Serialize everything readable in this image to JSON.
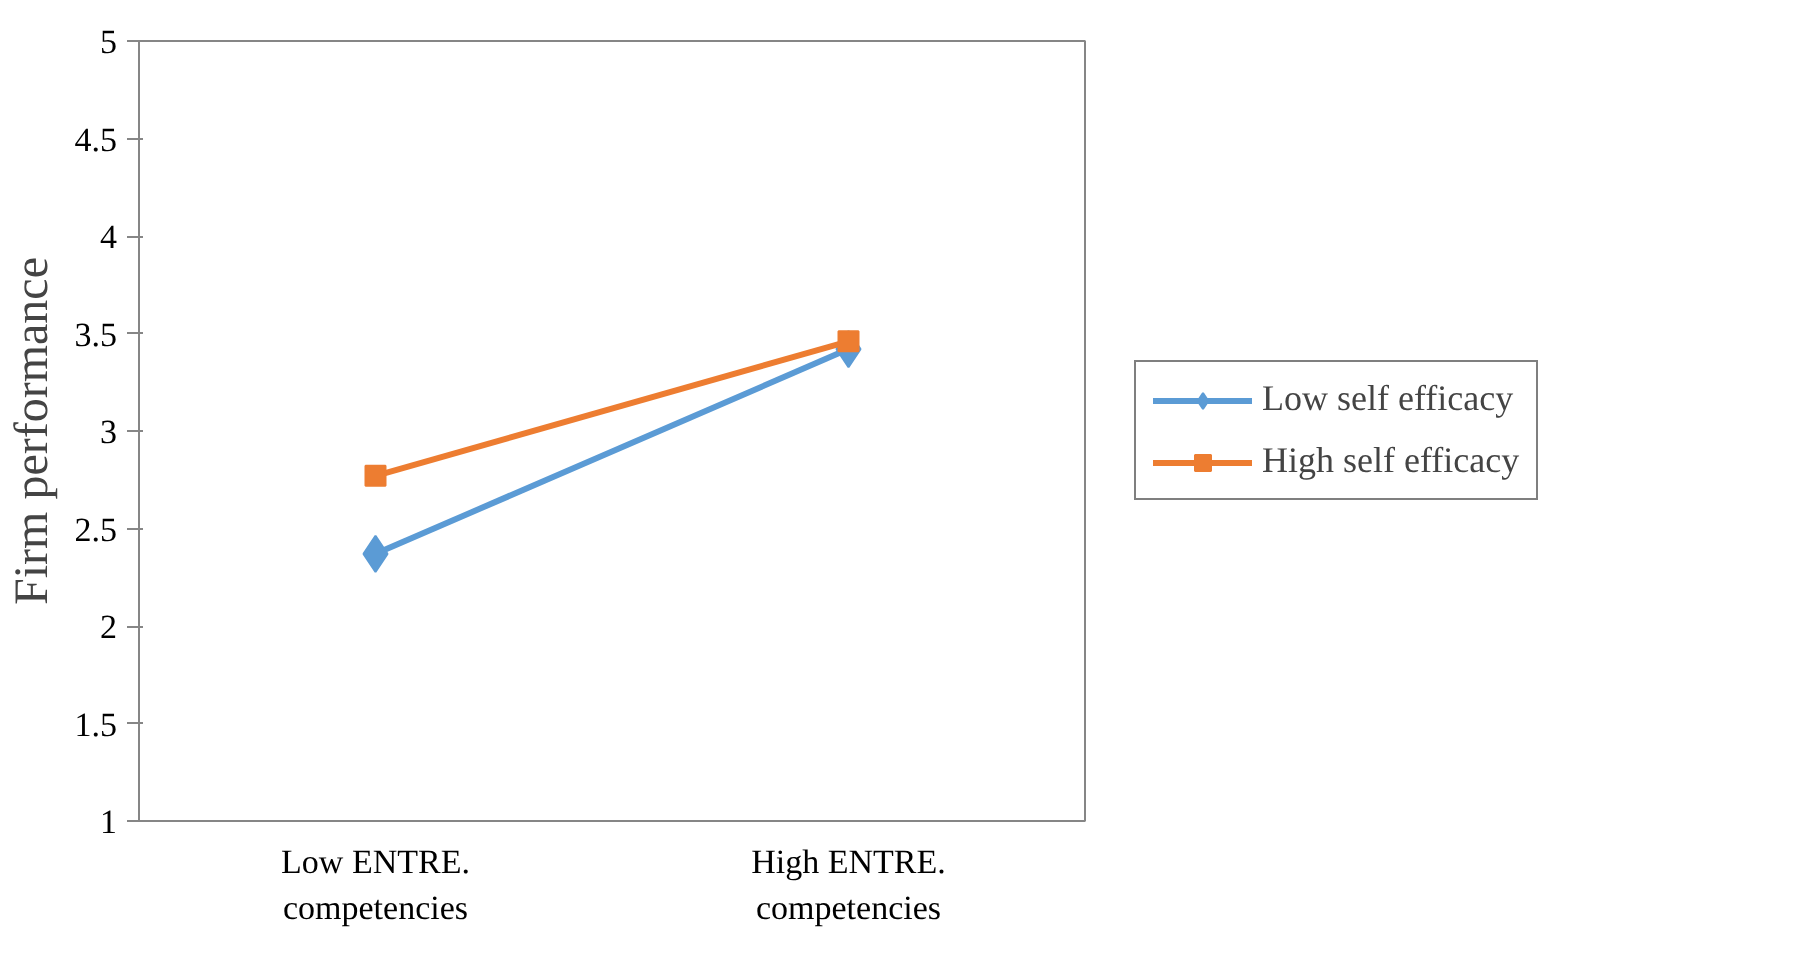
{
  "chart_data": {
    "type": "line",
    "ylabel": "Firm performance",
    "categories": [
      "Low ENTRE. competencies",
      "High ENTRE. competencies"
    ],
    "series": [
      {
        "name": "Low self efficacy",
        "color": "#5b9bd5",
        "values": [
          2.37,
          3.42
        ],
        "marker": "diamond"
      },
      {
        "name": "High self efficacy",
        "color": "#ed7d31",
        "values": [
          2.77,
          3.46
        ],
        "marker": "square"
      }
    ],
    "ylim": [
      1,
      5
    ],
    "yticks": [
      1,
      1.5,
      2,
      2.5,
      3,
      3.5,
      4,
      4.5,
      5
    ],
    "grid": false,
    "legend": "right"
  }
}
